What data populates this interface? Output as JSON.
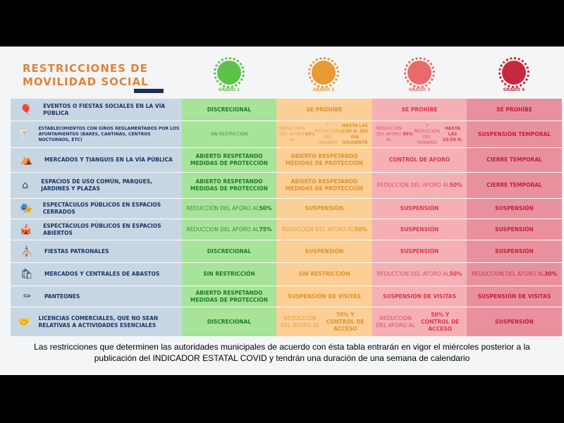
{
  "title": [
    "RESTRICCIONES DE",
    "MOVILIDAD SOCIAL"
  ],
  "grades": [
    {
      "label": "GRADO 1",
      "color": "#5cc24a"
    },
    {
      "label": "GRADO 2",
      "color": "#e89a35"
    },
    {
      "label": "GRADO 3",
      "color": "#e86a6a"
    },
    {
      "label": "GRADO 4",
      "color": "#c8283f"
    }
  ],
  "rows": [
    {
      "icon": "balloons-icon",
      "glyph": "🎈",
      "label": "EVENTOS O FIESTAS SOCIALES EN LA VÍA PÚBLICA",
      "h": 32,
      "cells": [
        [
          [
            "DISCRECIONAL",
            1
          ]
        ],
        [
          [
            "SE PROHÍBE",
            1
          ]
        ],
        [
          [
            "SE PROHÍBE",
            1
          ]
        ],
        [
          [
            "SE PROHÍBE",
            1
          ]
        ]
      ]
    },
    {
      "icon": "drink-icon",
      "glyph": "🍸",
      "label": "ESTABLECIMIENTOS CON GIROS REGLAMENTADOS POR LOS AYUNTAMIENTOS (BARES, CANTINAS, CENTROS NOCTURNOS, ETC)",
      "small": true,
      "h": 38,
      "cells": [
        [
          [
            "SIN RESTRICCIÓN",
            0
          ]
        ],
        [
          [
            "REDUCCIÓN DEL AFORO AL ",
            0
          ],
          [
            "50%",
            1
          ],
          [
            " Y REDUCCIÓN DEL HORARIO ",
            0
          ],
          [
            "HASTA LAS 2:00 H. DEL DÍA SIGUIENTE",
            1
          ]
        ],
        [
          [
            "REDUCCIÓN DEL AFORO AL ",
            0
          ],
          [
            "50%",
            1
          ],
          [
            " Y REDUCCIÓN DEL HORARIO ",
            0
          ],
          [
            "HASTA LAS 23:59 H.",
            1
          ]
        ],
        [
          [
            "SUSPENSIÓN TEMPORAL",
            1
          ]
        ]
      ]
    },
    {
      "icon": "market-icon",
      "glyph": "⛺",
      "label": "MERCADOS Y TIANGUIS EN LA VÍA PÚBLICA",
      "h": 35,
      "cells": [
        [
          [
            "ABIERTO RESPETANDO MEDIDAS DE PROTECCIÓN",
            1
          ]
        ],
        [
          [
            "ABIERTO RESPETANDO MEDIDAS DE PROTECCIÓN",
            1
          ]
        ],
        [
          [
            "CONTROL DE AFORO",
            1
          ]
        ],
        [
          [
            "CIERRE TEMPORAL",
            1
          ]
        ]
      ]
    },
    {
      "icon": "park-icon",
      "glyph": "⌂",
      "label": "ESPACIOS DE USO COMÚN, PARQUES, JARDINES Y PLAZAS",
      "h": 37,
      "cells": [
        [
          [
            "ABIERTO RESPETANDO MEDIDAS DE PROTECCIÓN",
            1
          ]
        ],
        [
          [
            "ABIERTO RESPETANDO MEDIDAS DE PROTECCIÓN",
            1
          ]
        ],
        [
          [
            "REDUCCIÓN DEL AFORO AL ",
            0
          ],
          [
            "50%",
            1
          ]
        ],
        [
          [
            "CIERRE TEMPORAL",
            1
          ]
        ]
      ]
    },
    {
      "icon": "theater-icon",
      "glyph": "🎭",
      "label": "ESPECTÁCULOS PÚBLICOS EN ESPACIOS CERRADOS",
      "h": 29,
      "cells": [
        [
          [
            "REDUCCIÓN DEL AFORO AL ",
            0
          ],
          [
            "50%",
            1
          ]
        ],
        [
          [
            "SUSPENSIÓN",
            1
          ]
        ],
        [
          [
            "SUSPENSIÓN",
            1
          ]
        ],
        [
          [
            "SUSPENSIÓN",
            1
          ]
        ]
      ]
    },
    {
      "icon": "stage-icon",
      "glyph": "🎪",
      "label": "ESPECTÁCULOS PÚBLICOS EN ESPACIOS ABIERTOS",
      "h": 30,
      "cells": [
        [
          [
            "REDUCCIÓN DEL AFORO AL ",
            0
          ],
          [
            "75%",
            1
          ]
        ],
        [
          [
            "REDUCCIÓN DEL AFORO AL ",
            0
          ],
          [
            "50%",
            1
          ]
        ],
        [
          [
            "SUSPENSIÓN",
            1
          ]
        ],
        [
          [
            "SUSPENSIÓN",
            1
          ]
        ]
      ]
    },
    {
      "icon": "church-icon",
      "glyph": "⛪",
      "label": "FIESTAS PATRONALES",
      "h": 32,
      "cells": [
        [
          [
            "DISCRECIONAL",
            1
          ]
        ],
        [
          [
            "SUSPENSIÓN",
            1
          ]
        ],
        [
          [
            "SUSPENSIÓN",
            1
          ]
        ],
        [
          [
            "SUSPENSIÓN",
            1
          ]
        ]
      ]
    },
    {
      "icon": "shopping-bag-icon",
      "glyph": "🛍",
      "label": "MERCADOS Y CENTRALES DE ABASTOS",
      "h": 33,
      "cells": [
        [
          [
            "SIN RESTRICCIÓN",
            1
          ]
        ],
        [
          [
            "SIN RESTRICCIÓN",
            1
          ]
        ],
        [
          [
            "REDUCCIÓN DEL AFORO AL ",
            0
          ],
          [
            "50%",
            1
          ]
        ],
        [
          [
            "REDUCCIÓN DEL AFORO AL ",
            0
          ],
          [
            "30%",
            1
          ]
        ]
      ]
    },
    {
      "icon": "tomb-icon",
      "glyph": "⚰",
      "label": "PANTEONES",
      "h": 30,
      "cells": [
        [
          [
            "ABIERTO RESPETANDO MEDIDAS DE PROTECCIÓN",
            1
          ]
        ],
        [
          [
            "SUSPENSIÓN DE VISITAS",
            1
          ]
        ],
        [
          [
            "SUSPENSIÓN DE VISITAS",
            1
          ]
        ],
        [
          [
            "SUSPENSIÓN DE VISITAS",
            1
          ]
        ]
      ]
    },
    {
      "icon": "handshake-icon",
      "glyph": "🤝",
      "label": "LICENCIAS COMERCIALES, QUE NO SEAN RELATIVAS A ACTIVIDADES ESENCIALES",
      "h": 42,
      "cells": [
        [
          [
            "DISCRECIONAL",
            1
          ]
        ],
        [
          [
            "REDUCCIÓN DEL AFORO AL ",
            0
          ],
          [
            "70% Y CONTROL DE ACCESO",
            1
          ]
        ],
        [
          [
            "REDUCCIÓN DEL AFORO AL ",
            0
          ],
          [
            "50% Y CONTROL DE ACCESO",
            1
          ]
        ],
        [
          [
            "SUSPENSIÓN",
            1
          ]
        ]
      ]
    }
  ],
  "caption": [
    "Las restricciones que determinen las autoridades municipales de acuerdo con ésta tabla entrarán en vigor el miércoles posterior a la",
    "publicación del INDICADOR ESTATAL COVID y tendrán una duración de una semana de calendario"
  ]
}
